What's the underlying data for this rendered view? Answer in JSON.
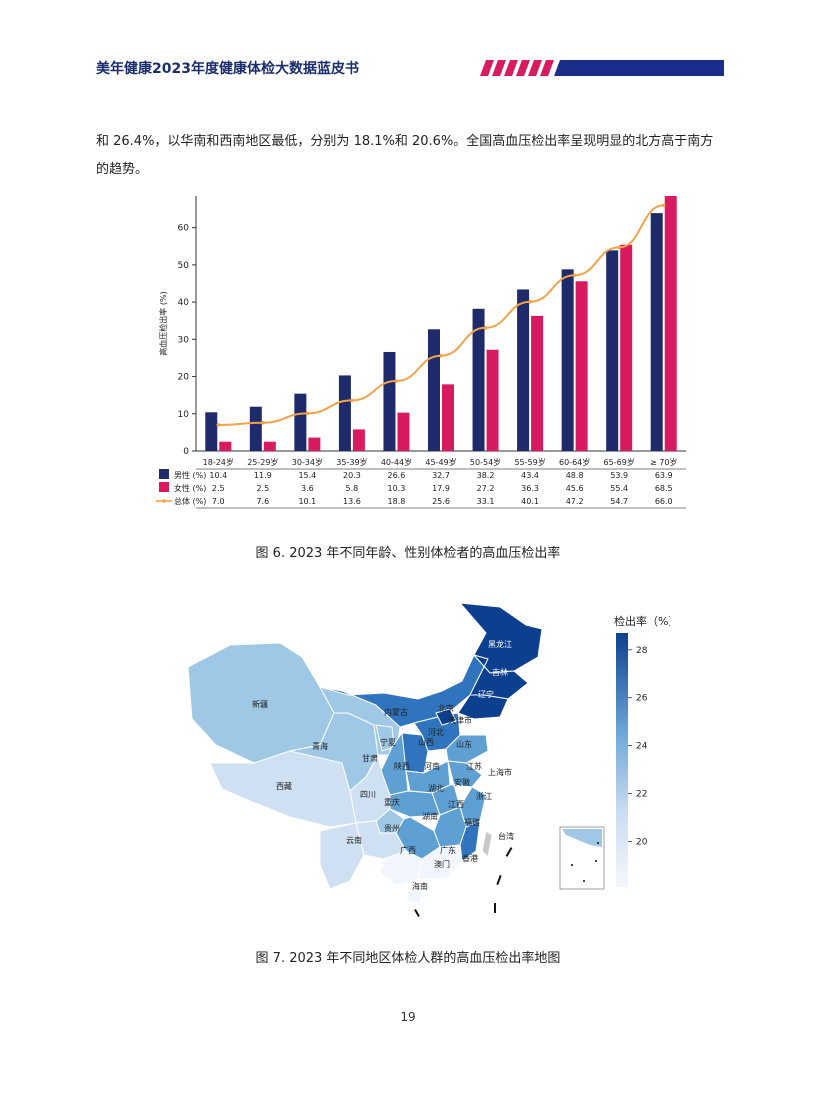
{
  "header": {
    "title": "美年健康2023年度健康体检大数据蓝皮书"
  },
  "body_text": "和 26.4%，以华南和西南地区最低，分别为 18.1%和 20.6%。全国高血压检出率呈现明显的北方高于南方的趋势。",
  "figure6": {
    "caption": "图 6. 2023 年不同年龄、性别体检者的高血压检出率"
  },
  "figure7": {
    "caption": "图 7. 2023 年不同地区体检人群的高血压检出率地图",
    "colorbar_title": "检出率（%）",
    "colorbar_ticks": [
      "28",
      "26",
      "24",
      "22",
      "20"
    ],
    "colorbar_range": [
      18.1,
      28.7
    ],
    "colors": [
      "#f0f6fc",
      "#cfe0f2",
      "#9ec8e6",
      "#5e9fd4",
      "#2f74bd",
      "#0d3f8f"
    ],
    "provinces": [
      {
        "name": "黑龙江"
      },
      {
        "name": "吉林"
      },
      {
        "name": "辽宁"
      },
      {
        "name": "内蒙古"
      },
      {
        "name": "北京"
      },
      {
        "name": "天津市"
      },
      {
        "name": "河北"
      },
      {
        "name": "山西"
      },
      {
        "name": "山东"
      },
      {
        "name": "宁夏"
      },
      {
        "name": "甘肃"
      },
      {
        "name": "陕西"
      },
      {
        "name": "河南"
      },
      {
        "name": "江苏"
      },
      {
        "name": "安徽"
      },
      {
        "name": "上海市"
      },
      {
        "name": "湖北"
      },
      {
        "name": "浙江"
      },
      {
        "name": "江西"
      },
      {
        "name": "湖南"
      },
      {
        "name": "福建"
      },
      {
        "name": "新疆"
      },
      {
        "name": "青海"
      },
      {
        "name": "西藏"
      },
      {
        "name": "四川"
      },
      {
        "name": "重庆"
      },
      {
        "name": "贵州"
      },
      {
        "name": "云南"
      },
      {
        "name": "广西"
      },
      {
        "name": "广东"
      },
      {
        "name": "澳门"
      },
      {
        "name": "香港"
      },
      {
        "name": "海南"
      },
      {
        "name": "台湾"
      }
    ]
  },
  "chart_data": {
    "type": "bar",
    "categories": [
      "18-24岁",
      "25-29岁",
      "30-34岁",
      "35-39岁",
      "40-44岁",
      "45-49岁",
      "50-54岁",
      "55-59岁",
      "60-64岁",
      "65-69岁",
      "≥ 70岁"
    ],
    "series": [
      {
        "name": "男性 (%)",
        "type": "bar",
        "color": "#1f2a6b",
        "values": [
          10.4,
          11.9,
          15.4,
          20.3,
          26.6,
          32.7,
          38.2,
          43.4,
          48.8,
          53.9,
          63.9
        ]
      },
      {
        "name": "女性 (%)",
        "type": "bar",
        "color": "#d81b60",
        "values": [
          2.5,
          2.5,
          3.6,
          5.8,
          10.3,
          17.9,
          27.2,
          36.3,
          45.6,
          55.4,
          68.5
        ]
      },
      {
        "name": "总体 (%)",
        "type": "line",
        "color": "#f4a24a",
        "values": [
          7.0,
          7.6,
          10.1,
          13.6,
          18.8,
          25.6,
          33.1,
          40.1,
          47.2,
          54.7,
          66.0
        ]
      }
    ],
    "ylabel": "高血压检出率 (%)",
    "xlabel": "",
    "ylim": [
      0,
      68.5
    ],
    "yticks": [
      0,
      10,
      20,
      30,
      40,
      50,
      60
    ],
    "legend": "table-below"
  },
  "page_number": "19"
}
